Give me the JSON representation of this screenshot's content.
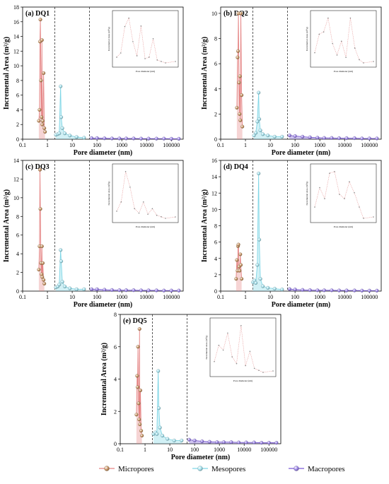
{
  "colors": {
    "micro": "#e58585",
    "micro_marker": "#c89666",
    "meso": "#7fd6e6",
    "meso_marker": "#a8e4f0",
    "macro": "#7b5bd6",
    "macro_marker": "#9d86e8",
    "inset_line": "#e8a0a0"
  },
  "legend": [
    {
      "key": "micro",
      "label": "Micropores"
    },
    {
      "key": "meso",
      "label": "Mesopores"
    },
    {
      "key": "macro",
      "label": "Macropores"
    }
  ],
  "chart_data": [
    {
      "type": "line",
      "title": "(a) DQ1",
      "xlabel": "Pore diameter (nm)",
      "ylabel": "Incremental Area (m²/g)",
      "x_scale": "log",
      "xlim": [
        0.1,
        300000
      ],
      "ylim": [
        0,
        18
      ],
      "x_ticks": [
        "0.1",
        "1",
        "10",
        "100",
        "1000",
        "10000",
        "100000"
      ],
      "y_ticks": [
        0,
        2,
        4,
        6,
        8,
        10,
        12,
        14,
        16,
        18
      ],
      "boundaries": [
        2,
        50
      ],
      "series": [
        {
          "key": "micro",
          "x": [
            0.45,
            0.48,
            0.5,
            0.52,
            0.55,
            0.58,
            0.6,
            0.62,
            0.65,
            0.7,
            0.75,
            0.8
          ],
          "y": [
            2.5,
            4,
            13.3,
            16.3,
            8,
            3,
            13.5,
            2,
            2.5,
            9,
            1.5,
            1
          ]
        },
        {
          "key": "meso",
          "x": [
            2.2,
            2.6,
            3.0,
            3.4,
            3.6,
            4.0,
            5,
            8,
            15,
            30
          ],
          "y": [
            0.6,
            0.7,
            0.8,
            7.2,
            3,
            1.5,
            0.8,
            0.5,
            0.3,
            0.2
          ]
        },
        {
          "key": "macro",
          "x": [
            60,
            100,
            200,
            400,
            800,
            1500,
            3000,
            6000,
            12000,
            25000,
            50000,
            100000,
            200000
          ],
          "y": [
            0.15,
            0.15,
            0.12,
            0.1,
            0.1,
            0.1,
            0.1,
            0.08,
            0.08,
            0.08,
            0.08,
            0.06,
            0.06
          ]
        }
      ],
      "inset": {
        "xlabel": "Pore diameter (nm)",
        "ylabel": "Incremental Area (m²/g)"
      }
    },
    {
      "type": "line",
      "title": "(b) DQ2",
      "xlabel": "Pore diameter (nm)",
      "ylabel": "Incremental Area (m²/g)",
      "x_scale": "log",
      "xlim": [
        0.1,
        300000
      ],
      "ylim": [
        0,
        10.5
      ],
      "x_ticks": [
        "0.1",
        "1",
        "10",
        "100",
        "1000",
        "10000",
        "100000"
      ],
      "y_ticks": [
        0,
        2,
        4,
        6,
        8,
        10
      ],
      "boundaries": [
        2,
        50
      ],
      "series": [
        {
          "key": "micro",
          "x": [
            0.45,
            0.48,
            0.5,
            0.52,
            0.55,
            0.58,
            0.6,
            0.62,
            0.65,
            0.7,
            0.75
          ],
          "y": [
            2.5,
            6.5,
            7,
            10,
            4.5,
            2,
            5,
            1.5,
            10,
            3.5,
            1
          ]
        },
        {
          "key": "meso",
          "x": [
            2.2,
            2.6,
            3.0,
            3.4,
            3.6,
            4.0,
            5,
            8,
            15,
            30
          ],
          "y": [
            0.3,
            0.5,
            1.4,
            3.7,
            1.6,
            0.7,
            0.4,
            0.3,
            0.2,
            0.2
          ]
        },
        {
          "key": "macro",
          "x": [
            60,
            100,
            200,
            400,
            800,
            1500,
            3000,
            6000,
            12000,
            25000,
            50000,
            100000,
            200000
          ],
          "y": [
            0.3,
            0.25,
            0.2,
            0.15,
            0.12,
            0.1,
            0.1,
            0.08,
            0.08,
            0.08,
            0.06,
            0.06,
            0.06
          ]
        }
      ],
      "inset": {
        "xlabel": "Pore diameter (nm)",
        "ylabel": "Incremental Area (m²/g)"
      }
    },
    {
      "type": "line",
      "title": "(c) DQ3",
      "xlabel": "Pore diameter (nm)",
      "ylabel": "Incremental Area (m²/g)",
      "x_scale": "log",
      "xlim": [
        0.1,
        300000
      ],
      "ylim": [
        0,
        14
      ],
      "x_ticks": [
        "0.1",
        "1",
        "10",
        "100",
        "1000",
        "10000",
        "100000"
      ],
      "y_ticks": [
        0,
        2,
        4,
        6,
        8,
        10,
        12,
        14
      ],
      "boundaries": [
        2,
        50
      ],
      "series": [
        {
          "key": "micro",
          "x": [
            0.45,
            0.48,
            0.5,
            0.52,
            0.55,
            0.58,
            0.6,
            0.62,
            0.65,
            0.7,
            0.75
          ],
          "y": [
            2.3,
            4.8,
            13,
            8.8,
            3,
            1.8,
            4.8,
            1.5,
            3,
            1.2,
            0.8
          ]
        },
        {
          "key": "meso",
          "x": [
            2.2,
            2.6,
            3.0,
            3.4,
            3.6,
            4.0,
            5,
            8,
            15,
            30
          ],
          "y": [
            0.4,
            0.5,
            0.7,
            4.4,
            3.2,
            1.0,
            0.5,
            0.3,
            0.2,
            0.2
          ]
        },
        {
          "key": "macro",
          "x": [
            60,
            100,
            200,
            400,
            800,
            1500,
            3000,
            6000,
            12000,
            25000,
            50000,
            100000,
            200000
          ],
          "y": [
            0.2,
            0.2,
            0.15,
            0.12,
            0.1,
            0.1,
            0.1,
            0.08,
            0.08,
            0.08,
            0.06,
            0.06,
            0.06
          ]
        }
      ],
      "inset": {
        "xlabel": "Pore diameter (nm)",
        "ylabel": "Incremental Area (m²/g)"
      }
    },
    {
      "type": "line",
      "title": "(d) DQ4",
      "xlabel": "Pore diameter (nm)",
      "ylabel": "Incremental Area (m²/g)",
      "x_scale": "log",
      "xlim": [
        0.1,
        300000
      ],
      "ylim": [
        0,
        16
      ],
      "x_ticks": [
        "0.1",
        "1",
        "10",
        "100",
        "1000",
        "10000",
        "100000"
      ],
      "y_ticks": [
        0,
        2,
        4,
        6,
        8,
        10,
        12,
        14,
        16
      ],
      "boundaries": [
        2,
        50
      ],
      "series": [
        {
          "key": "micro",
          "x": [
            0.42,
            0.45,
            0.48,
            0.5,
            0.52,
            0.55,
            0.58,
            0.62,
            0.65,
            0.7
          ],
          "y": [
            1.5,
            3.8,
            2.5,
            5.5,
            5.7,
            3,
            2.5,
            4.5,
            3.2,
            1.5
          ]
        },
        {
          "key": "meso",
          "x": [
            2.0,
            2.3,
            2.6,
            3.0,
            3.4,
            3.6,
            4.0,
            5,
            8,
            15,
            30
          ],
          "y": [
            1.1,
            1.3,
            1.0,
            3.2,
            14.4,
            6.3,
            1.5,
            0.6,
            0.4,
            0.3,
            0.2
          ]
        },
        {
          "key": "macro",
          "x": [
            60,
            100,
            200,
            400,
            800,
            1500,
            3000,
            6000,
            12000,
            25000,
            50000,
            100000,
            200000
          ],
          "y": [
            0.25,
            0.2,
            0.15,
            0.12,
            0.1,
            0.1,
            0.1,
            0.08,
            0.08,
            0.08,
            0.06,
            0.06,
            0.06
          ]
        }
      ],
      "inset": {
        "xlabel": "Pore diameter (nm)",
        "ylabel": "Incremental Area (m²/g)"
      }
    },
    {
      "type": "line",
      "title": "(e) DQ5",
      "xlabel": "Pore diameter (nm)",
      "ylabel": "Incremental Area (m²/g)",
      "x_scale": "log",
      "xlim": [
        0.1,
        300000
      ],
      "ylim": [
        0,
        8
      ],
      "x_ticks": [
        "0.1",
        "1",
        "10",
        "100",
        "1000",
        "10000",
        "100000"
      ],
      "y_ticks": [
        0,
        2,
        4,
        6,
        8
      ],
      "boundaries": [
        2,
        50
      ],
      "series": [
        {
          "key": "micro",
          "x": [
            0.45,
            0.48,
            0.5,
            0.52,
            0.55,
            0.58,
            0.6,
            0.62,
            0.65,
            0.7,
            0.75
          ],
          "y": [
            1.8,
            4.2,
            3.5,
            6,
            2.5,
            1.5,
            7.1,
            1.2,
            3.3,
            0.8,
            0.5
          ]
        },
        {
          "key": "meso",
          "x": [
            2.2,
            2.6,
            3.0,
            3.4,
            3.6,
            4.0,
            5,
            8,
            15,
            30
          ],
          "y": [
            0.6,
            0.7,
            0.6,
            4.5,
            2.2,
            1.0,
            0.5,
            0.3,
            0.2,
            0.2
          ]
        },
        {
          "key": "macro",
          "x": [
            60,
            100,
            200,
            400,
            800,
            1500,
            3000,
            6000,
            12000,
            25000,
            50000,
            100000,
            200000
          ],
          "y": [
            0.25,
            0.2,
            0.15,
            0.12,
            0.1,
            0.1,
            0.1,
            0.08,
            0.08,
            0.08,
            0.06,
            0.06,
            0.06
          ]
        }
      ],
      "inset": {
        "xlabel": "Pore diameter (nm)",
        "ylabel": "Incremental Area (m²/g)"
      }
    }
  ]
}
